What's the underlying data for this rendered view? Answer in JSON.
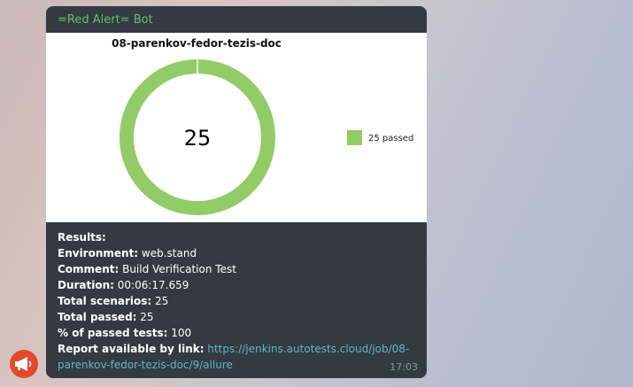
{
  "message": {
    "sender": "=Red Alert= Bot",
    "time": "17:03",
    "lines": {
      "results": "Results:",
      "environment_label": "Environment:",
      "environment_value": " web.stand",
      "comment_label": "Comment:",
      "comment_value": " Build Verification Test",
      "duration_label": "Duration:",
      "duration_value": " 00:06:17.659",
      "scenarios_label": "Total scenarios:",
      "scenarios_value": " 25",
      "passed_label": "Total passed:",
      "passed_value": " 25",
      "percent_label": "% of passed tests:",
      "percent_value": " 100",
      "report_label": "Report available by link:",
      "report_link": "https://jenkins.autotests.cloud/job/08-parenkov-fedor-tezis-doc/9/allure"
    }
  },
  "chart_data": {
    "type": "pie",
    "title": "08-parenkov-fedor-tezis-doc",
    "center_label": "25",
    "slices": [
      {
        "label": "25 passed",
        "value": 25,
        "color": "#91cc66"
      }
    ],
    "legend_position": "right"
  },
  "colors": {
    "sender": "#5fc36a",
    "link": "#5fb8c8",
    "bubble": "#333a41",
    "avatar": "#e24a2b"
  },
  "icons": {
    "avatar": "megaphone-icon"
  }
}
